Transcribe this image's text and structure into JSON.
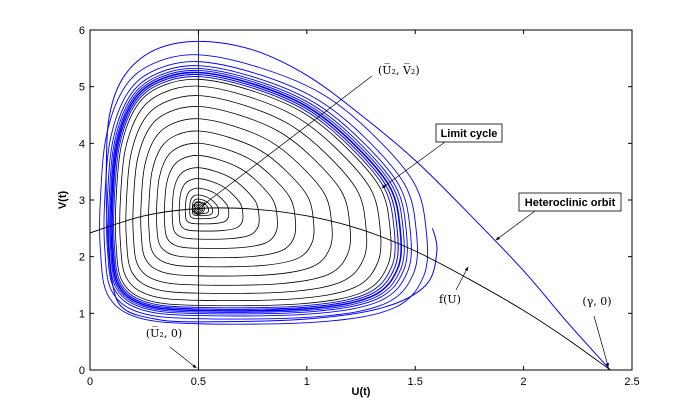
{
  "chart_data": {
    "type": "line",
    "xlabel": "U(t)",
    "ylabel": "V(t)",
    "xlim": [
      0,
      2.5
    ],
    "ylim": [
      0,
      6
    ],
    "xticks": [
      "0",
      "0.5",
      "1",
      "1.5",
      "2",
      "2.5"
    ],
    "yticks": [
      "0",
      "1",
      "2",
      "3",
      "4",
      "5",
      "6"
    ],
    "grid": false,
    "equilibrium": {
      "u": 0.5,
      "v": 2.85
    },
    "vertical_line_u": 0.5,
    "f_curve": {
      "description_label": "f(U)",
      "points": [
        [
          0,
          2.42
        ],
        [
          0.25,
          2.72
        ],
        [
          0.5,
          2.85
        ],
        [
          0.75,
          2.84
        ],
        [
          1.0,
          2.72
        ],
        [
          1.25,
          2.48
        ],
        [
          1.5,
          2.1
        ],
        [
          1.75,
          1.6
        ],
        [
          2.0,
          1.05
        ],
        [
          2.2,
          0.55
        ],
        [
          2.4,
          0.0
        ]
      ]
    },
    "heteroclinic_orbit": [
      [
        2.4,
        0.0
      ],
      [
        2.2,
        0.85
      ],
      [
        2.0,
        1.75
      ],
      [
        1.75,
        2.75
      ],
      [
        1.5,
        3.7
      ],
      [
        1.25,
        4.5
      ],
      [
        1.0,
        5.2
      ],
      [
        0.75,
        5.65
      ],
      [
        0.5,
        5.8
      ],
      [
        0.3,
        5.65
      ],
      [
        0.16,
        5.2
      ],
      [
        0.09,
        4.5
      ],
      [
        0.075,
        3.5
      ],
      [
        0.08,
        2.5
      ],
      [
        0.1,
        1.6
      ],
      [
        0.15,
        1.1
      ],
      [
        0.3,
        0.9
      ],
      [
        0.5,
        0.85
      ],
      [
        1.0,
        0.9
      ],
      [
        1.35,
        1.1
      ],
      [
        1.55,
        1.5
      ],
      [
        1.6,
        2.1
      ],
      [
        1.58,
        2.5
      ]
    ],
    "limit_cycle": [
      [
        0.1,
        3.0
      ],
      [
        0.125,
        4.0
      ],
      [
        0.2,
        4.75
      ],
      [
        0.32,
        5.12
      ],
      [
        0.5,
        5.25
      ],
      [
        0.75,
        5.05
      ],
      [
        1.0,
        4.65
      ],
      [
        1.2,
        4.05
      ],
      [
        1.38,
        3.25
      ],
      [
        1.43,
        2.5
      ],
      [
        1.42,
        1.8
      ],
      [
        1.3,
        1.3
      ],
      [
        1.0,
        1.08
      ],
      [
        0.5,
        1.05
      ],
      [
        0.25,
        1.15
      ],
      [
        0.13,
        1.5
      ],
      [
        0.1,
        2.2
      ],
      [
        0.1,
        3.0
      ]
    ],
    "annotations": {
      "equilibrium_label": "(U̅₂, V̅₂)",
      "limit_cycle_label": "Limit cycle",
      "heteroclinic_label": "Heteroclinic orbit",
      "f_label": "f(U)",
      "u2_label": "(U̅₂, 0)",
      "gamma_label": "(γ, 0)"
    },
    "colors": {
      "orbits": "#0000ff",
      "trajectories": "#000000",
      "axes": "#000000"
    }
  }
}
